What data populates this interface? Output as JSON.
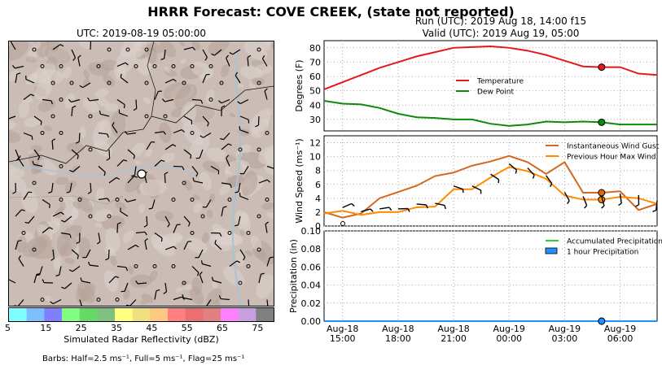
{
  "header": {
    "title": "HRRR Forecast: COVE CREEK, (state not reported)",
    "run": "Run (UTC): 2019 Aug 18, 14:00 f15",
    "valid": "Valid (UTC): 2019 Aug 19, 05:00"
  },
  "map": {
    "title": "UTC: 2019-08-19 05:00:00",
    "colorbar": {
      "label": "Simulated Radar Reflectivity (dBZ)",
      "ticks": [
        "5",
        "15",
        "25",
        "35",
        "45",
        "55",
        "65",
        "75"
      ],
      "colors": [
        "#80ffff",
        "#7fbfff",
        "#8080ff",
        "#80ff80",
        "#66d966",
        "#80c080",
        "#ffff80",
        "#f0e080",
        "#ffc880",
        "#ff8080",
        "#e87070",
        "#e08080",
        "#ff80ff",
        "#c8a0e0",
        "#808080"
      ]
    },
    "barb_note": "Barbs: Half=2.5 ms⁻¹, Full=5 ms⁻¹, Flag=25 ms⁻¹"
  },
  "chart_data": [
    {
      "type": "line",
      "x": [
        "2019-08-18 14:00",
        "2019-08-18 15:00",
        "2019-08-18 16:00",
        "2019-08-18 17:00",
        "2019-08-18 18:00",
        "2019-08-18 19:00",
        "2019-08-18 20:00",
        "2019-08-18 21:00",
        "2019-08-18 22:00",
        "2019-08-18 23:00",
        "2019-08-19 00:00",
        "2019-08-19 01:00",
        "2019-08-19 02:00",
        "2019-08-19 03:00",
        "2019-08-19 04:00",
        "2019-08-19 05:00",
        "2019-08-19 06:00",
        "2019-08-19 07:00",
        "2019-08-19 08:00"
      ],
      "xticks": [
        "Aug-18\n15:00",
        "Aug-18\n18:00",
        "Aug-18\n21:00",
        "Aug-19\n00:00",
        "Aug-19\n03:00",
        "Aug-19\n06:00"
      ],
      "ylabel": "Degrees (F)",
      "ylim": [
        22,
        85
      ],
      "yticks": [
        30,
        40,
        50,
        60,
        70,
        80
      ],
      "legend_position": "center-right",
      "series": [
        {
          "name": "Temperature",
          "color": "#e31a1c",
          "values": [
            51,
            56,
            61,
            66,
            70,
            74,
            77,
            80,
            80.5,
            81,
            80,
            78,
            75,
            71,
            67,
            66.5,
            66.5,
            62,
            61
          ]
        },
        {
          "name": "Dew Point",
          "color": "#0b8a0b",
          "values": [
            43,
            41,
            40.5,
            38,
            34,
            31.5,
            31,
            30,
            30,
            27,
            25.5,
            26.5,
            28.5,
            28,
            28.5,
            28,
            26.5,
            26.5,
            26.5
          ]
        }
      ],
      "highlight_x": "2019-08-19 05:00"
    },
    {
      "type": "line",
      "x": [
        "2019-08-18 14:00",
        "2019-08-18 15:00",
        "2019-08-18 16:00",
        "2019-08-18 17:00",
        "2019-08-18 18:00",
        "2019-08-18 19:00",
        "2019-08-18 20:00",
        "2019-08-18 21:00",
        "2019-08-18 22:00",
        "2019-08-18 23:00",
        "2019-08-19 00:00",
        "2019-08-19 01:00",
        "2019-08-19 02:00",
        "2019-08-19 03:00",
        "2019-08-19 04:00",
        "2019-08-19 05:00",
        "2019-08-19 06:00",
        "2019-08-19 07:00",
        "2019-08-19 08:00"
      ],
      "ylabel": "Wind Speed (ms⁻¹)",
      "ylim": [
        0,
        13
      ],
      "yticks": [
        0,
        2,
        4,
        6,
        8,
        10,
        12
      ],
      "legend_position": "top-right",
      "series": [
        {
          "name": "Instantaneous Wind Gust",
          "color": "#d2691e",
          "values": [
            2,
            1.2,
            1.8,
            4,
            4.9,
            5.8,
            7.2,
            7.7,
            8.7,
            9.3,
            10.1,
            9.2,
            7.5,
            9.2,
            4.8,
            4.8,
            5,
            2.3,
            3.2
          ]
        },
        {
          "name": "Previous Hour Max Wind",
          "color": "#ff8c00",
          "values": [
            1.8,
            2.2,
            1.6,
            2,
            2,
            2.7,
            2.8,
            5.3,
            5.3,
            7,
            8.5,
            7.9,
            6.8,
            4.4,
            3.8,
            3.8,
            4.2,
            4,
            3.2
          ]
        }
      ],
      "highlight_x": "2019-08-19 05:00"
    },
    {
      "type": "bar",
      "x": [
        "2019-08-18 14:00",
        "2019-08-18 15:00",
        "2019-08-18 16:00",
        "2019-08-18 17:00",
        "2019-08-18 18:00",
        "2019-08-18 19:00",
        "2019-08-18 20:00",
        "2019-08-18 21:00",
        "2019-08-18 22:00",
        "2019-08-18 23:00",
        "2019-08-19 00:00",
        "2019-08-19 01:00",
        "2019-08-19 02:00",
        "2019-08-19 03:00",
        "2019-08-19 04:00",
        "2019-08-19 05:00",
        "2019-08-19 06:00",
        "2019-08-19 07:00",
        "2019-08-19 08:00"
      ],
      "ylabel": "Precipitation (in)",
      "ylim": [
        0,
        0.1
      ],
      "yticks": [
        "0.00",
        "0.02",
        "0.04",
        "0.06",
        "0.08",
        "0.10"
      ],
      "legend_position": "top-right",
      "series": [
        {
          "name": "Accumulated Precipitation",
          "color": "#32cd32",
          "values": [
            0,
            0,
            0,
            0,
            0,
            0,
            0,
            0,
            0,
            0,
            0,
            0,
            0,
            0,
            0,
            0,
            0,
            0,
            0
          ]
        },
        {
          "name": "1 hour Precipitation",
          "color": "#1e90ff",
          "values": [
            0,
            0,
            0,
            0,
            0,
            0,
            0,
            0,
            0,
            0,
            0,
            0,
            0,
            0,
            0,
            0,
            0,
            0,
            0
          ]
        }
      ],
      "highlight_x": "2019-08-19 05:00"
    }
  ]
}
